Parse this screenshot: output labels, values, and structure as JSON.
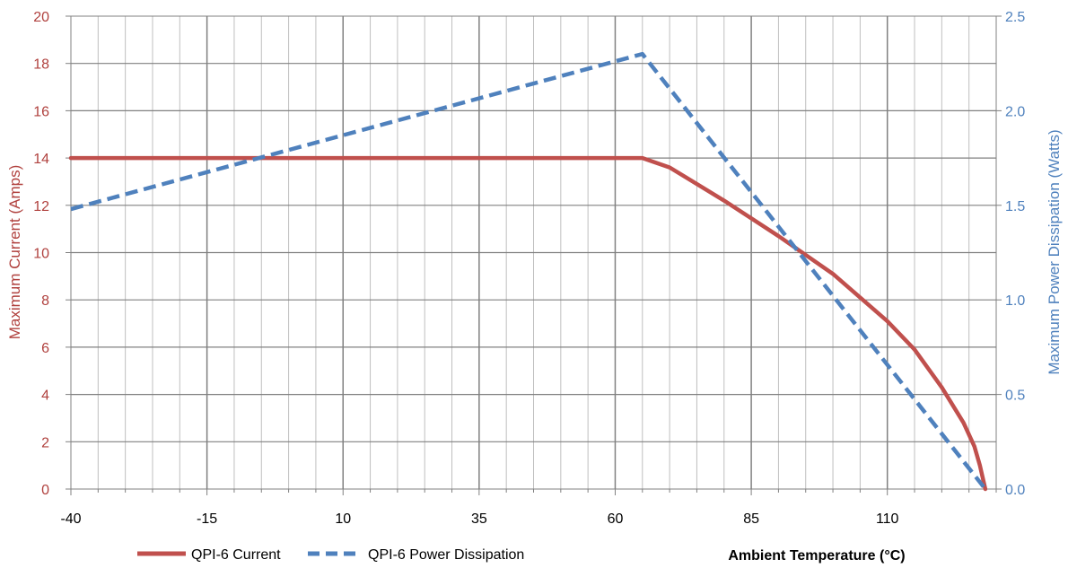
{
  "chart_data": {
    "type": "line",
    "xlabel": "Ambient Temperature (°C)",
    "ylabel_left": "Maximum Current (Amps)",
    "ylabel_right": "Maximum Power Dissipation (Watts)",
    "xlim": [
      -40,
      130
    ],
    "ylim_left": [
      0,
      20
    ],
    "ylim_right": [
      0,
      2.5
    ],
    "x_ticks": [
      "-40",
      "-15",
      "10",
      "35",
      "60",
      "85",
      "110"
    ],
    "y_ticks_left": [
      "0",
      "2",
      "4",
      "6",
      "8",
      "10",
      "12",
      "14",
      "16",
      "18",
      "20"
    ],
    "y_ticks_right": [
      "0.0",
      "0.5",
      "1.0",
      "1.5",
      "2.0",
      "2.5"
    ],
    "grid": true,
    "legend_position": "bottom-left",
    "series": [
      {
        "name": "QPI-6 Current",
        "axis": "left",
        "style": "solid",
        "color": "#c0504d",
        "x": [
          -40,
          65,
          70,
          80,
          90,
          100,
          110,
          115,
          120,
          124,
          126,
          127,
          128
        ],
        "y": [
          14,
          14,
          13.6,
          12.2,
          10.7,
          9.1,
          7.1,
          5.9,
          4.3,
          2.8,
          1.8,
          1.0,
          0
        ]
      },
      {
        "name": "QPI-6 Power Dissipation",
        "axis": "right",
        "style": "dashed",
        "color": "#4f81bd",
        "x": [
          -40,
          65,
          128
        ],
        "y": [
          1.48,
          2.3,
          0
        ]
      }
    ]
  }
}
